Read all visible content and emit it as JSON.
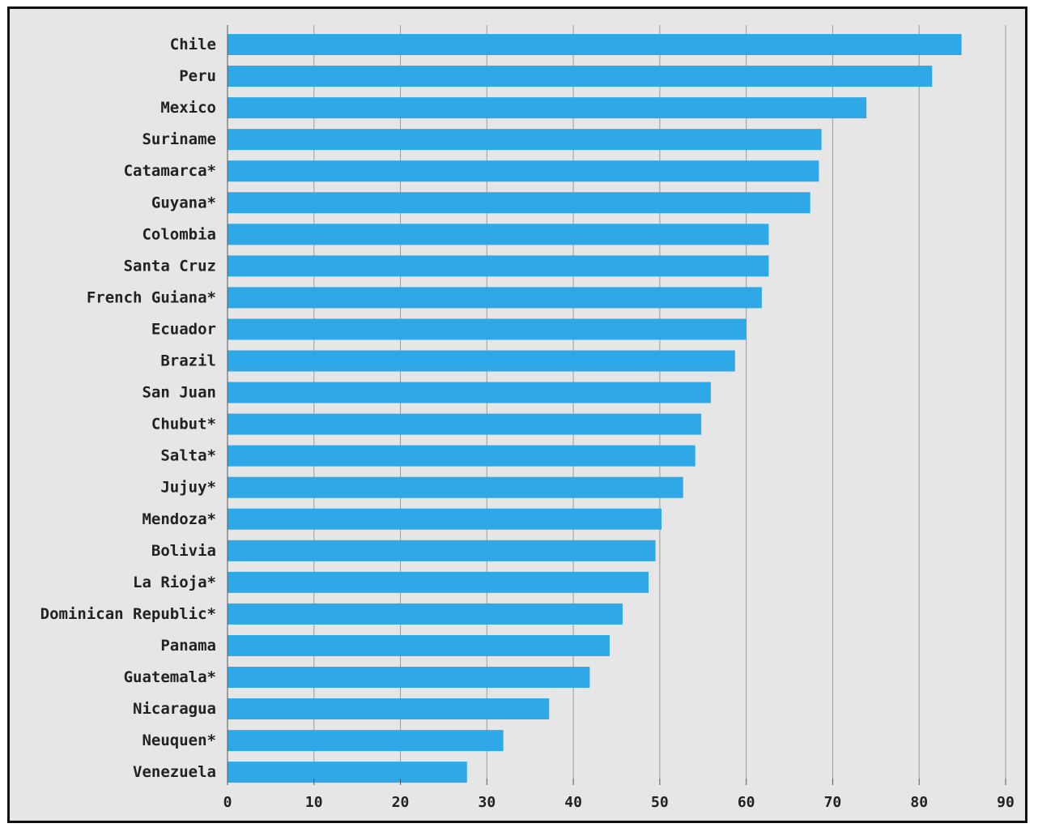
{
  "chart_data": {
    "type": "bar",
    "orientation": "horizontal",
    "categories": [
      "Chile",
      "Peru",
      "Mexico",
      "Suriname",
      "Catamarca*",
      "Guyana*",
      "Colombia",
      "Santa Cruz",
      "French Guiana*",
      "Ecuador",
      "Brazil",
      "San Juan",
      "Chubut*",
      "Salta*",
      "Jujuy*",
      "Mendoza*",
      "Bolivia",
      "La Rioja*",
      "Dominican Republic*",
      "Panama",
      "Guatemala*",
      "Nicaragua",
      "Neuquen*",
      "Venezuela"
    ],
    "values": [
      84.9,
      81.5,
      73.9,
      68.7,
      68.4,
      67.4,
      62.6,
      62.6,
      61.8,
      60.0,
      58.7,
      55.9,
      54.8,
      54.1,
      52.7,
      50.2,
      49.5,
      48.7,
      45.7,
      44.2,
      41.9,
      37.2,
      31.9,
      27.7
    ],
    "xticks": [
      "0",
      "10",
      "20",
      "30",
      "40",
      "50",
      "60",
      "70",
      "80",
      "90"
    ],
    "xlim": [
      0,
      90
    ],
    "grid": "vertical",
    "title": "",
    "xlabel": "",
    "ylabel": ""
  },
  "colors": {
    "bar": "#2ea8e6",
    "background": "#e6e6e6",
    "grid": "#9a9a9a",
    "frame": "#111111"
  }
}
